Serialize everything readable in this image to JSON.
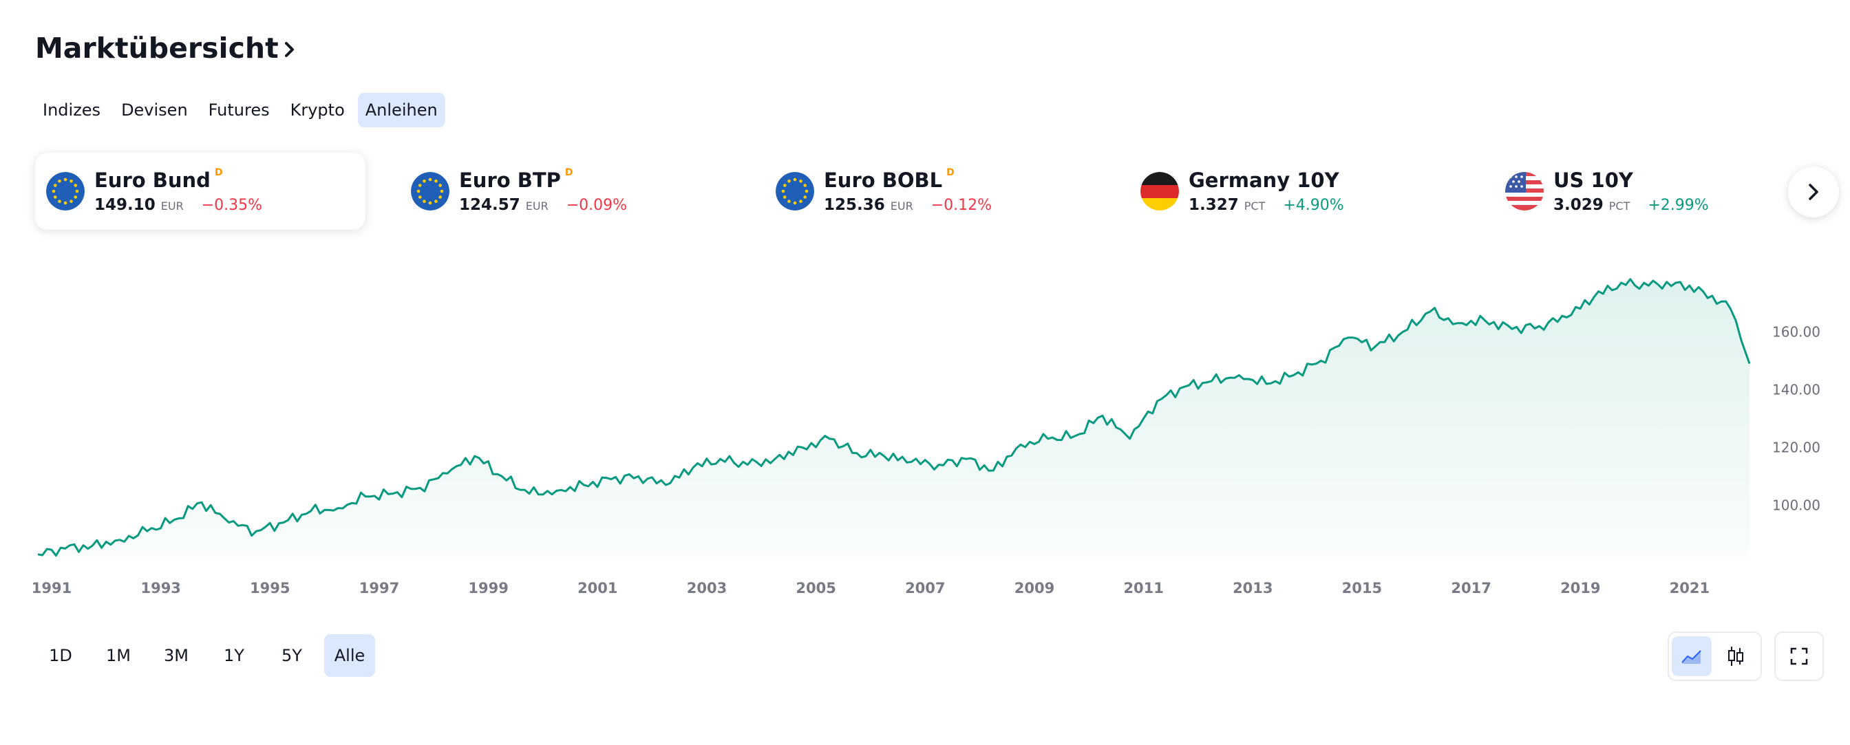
{
  "header": {
    "title": "Marktübersicht"
  },
  "tabs": [
    {
      "label": "Indizes",
      "active": false
    },
    {
      "label": "Devisen",
      "active": false
    },
    {
      "label": "Futures",
      "active": false
    },
    {
      "label": "Krypto",
      "active": false
    },
    {
      "label": "Anleihen",
      "active": true
    }
  ],
  "symbols": [
    {
      "name": "Euro Bund",
      "badge": "D",
      "price": "149.10",
      "currency": "EUR",
      "change": "−0.35%",
      "direction": "down",
      "flag": "eu-flag",
      "active": true
    },
    {
      "name": "Euro BTP",
      "badge": "D",
      "price": "124.57",
      "currency": "EUR",
      "change": "−0.09%",
      "direction": "down",
      "flag": "eu-flag",
      "active": false
    },
    {
      "name": "Euro BOBL",
      "badge": "D",
      "price": "125.36",
      "currency": "EUR",
      "change": "−0.12%",
      "direction": "down",
      "flag": "eu-flag",
      "active": false
    },
    {
      "name": "Germany 10Y",
      "badge": "",
      "price": "1.327",
      "currency": "PCT",
      "change": "+4.90%",
      "direction": "up",
      "flag": "de-flag",
      "active": false
    },
    {
      "name": "US 10Y",
      "badge": "",
      "price": "3.029",
      "currency": "PCT",
      "change": "+2.99%",
      "direction": "up",
      "flag": "us-flag",
      "active": false
    }
  ],
  "colors": {
    "accent_bg": "#dbe8fd",
    "line": "#089981",
    "negative": "#f23645",
    "positive": "#089981",
    "badge": "#ff9800"
  },
  "icons": {
    "title_chevron": "chevron-right-icon",
    "next": "chevron-right-icon",
    "area_style": "area-chart-icon",
    "candle_style": "candlestick-icon",
    "fullscreen": "fullscreen-icon"
  },
  "chart_data": {
    "type": "area",
    "series": [
      {
        "values": [
          [
            1991.0,
            83
          ],
          [
            1991.5,
            85
          ],
          [
            1992.0,
            86
          ],
          [
            1992.5,
            88
          ],
          [
            1993.0,
            91
          ],
          [
            1993.5,
            95
          ],
          [
            1994.0,
            101
          ],
          [
            1994.5,
            94
          ],
          [
            1995.0,
            91
          ],
          [
            1995.5,
            94
          ],
          [
            1996.0,
            98
          ],
          [
            1996.5,
            99
          ],
          [
            1997.0,
            103
          ],
          [
            1997.5,
            104
          ],
          [
            1998.0,
            106
          ],
          [
            1998.5,
            111
          ],
          [
            1999.0,
            117
          ],
          [
            1999.5,
            110
          ],
          [
            2000.0,
            104
          ],
          [
            2000.5,
            105
          ],
          [
            2001.0,
            107
          ],
          [
            2001.5,
            109
          ],
          [
            2002.0,
            110
          ],
          [
            2002.5,
            107
          ],
          [
            2003.0,
            113
          ],
          [
            2003.5,
            116
          ],
          [
            2004.0,
            114
          ],
          [
            2004.5,
            116
          ],
          [
            2005.0,
            120
          ],
          [
            2005.5,
            123
          ],
          [
            2006.0,
            118
          ],
          [
            2006.5,
            117
          ],
          [
            2007.0,
            115
          ],
          [
            2007.5,
            114
          ],
          [
            2008.0,
            116
          ],
          [
            2008.5,
            112
          ],
          [
            2009.0,
            121
          ],
          [
            2009.5,
            123
          ],
          [
            2010.0,
            124
          ],
          [
            2010.5,
            131
          ],
          [
            2011.0,
            123
          ],
          [
            2011.5,
            136
          ],
          [
            2012.0,
            141
          ],
          [
            2012.5,
            143
          ],
          [
            2013.0,
            145
          ],
          [
            2013.5,
            142
          ],
          [
            2014.0,
            145
          ],
          [
            2014.5,
            150
          ],
          [
            2015.0,
            158
          ],
          [
            2015.5,
            155
          ],
          [
            2016.0,
            160
          ],
          [
            2016.5,
            167
          ],
          [
            2017.0,
            163
          ],
          [
            2017.5,
            164
          ],
          [
            2018.0,
            161
          ],
          [
            2018.5,
            162
          ],
          [
            2019.0,
            165
          ],
          [
            2019.5,
            172
          ],
          [
            2020.0,
            177
          ],
          [
            2020.5,
            176
          ],
          [
            2021.0,
            177
          ],
          [
            2021.5,
            174
          ],
          [
            2022.0,
            168
          ],
          [
            2022.2,
            157
          ],
          [
            2022.35,
            149
          ]
        ]
      }
    ],
    "x_ticks": [
      "1991",
      "1993",
      "1995",
      "1997",
      "1999",
      "2001",
      "2003",
      "2005",
      "2007",
      "2009",
      "2011",
      "2013",
      "2015",
      "2017",
      "2019",
      "2021"
    ],
    "y_ticks": [
      "100.00",
      "120.00",
      "140.00",
      "160.00"
    ],
    "xlim": [
      1991,
      2022.4
    ],
    "ylim": [
      82,
      182
    ]
  },
  "ranges": [
    {
      "label": "1D",
      "active": false
    },
    {
      "label": "1M",
      "active": false
    },
    {
      "label": "3M",
      "active": false
    },
    {
      "label": "1Y",
      "active": false
    },
    {
      "label": "5Y",
      "active": false
    },
    {
      "label": "Alle",
      "active": true
    }
  ]
}
